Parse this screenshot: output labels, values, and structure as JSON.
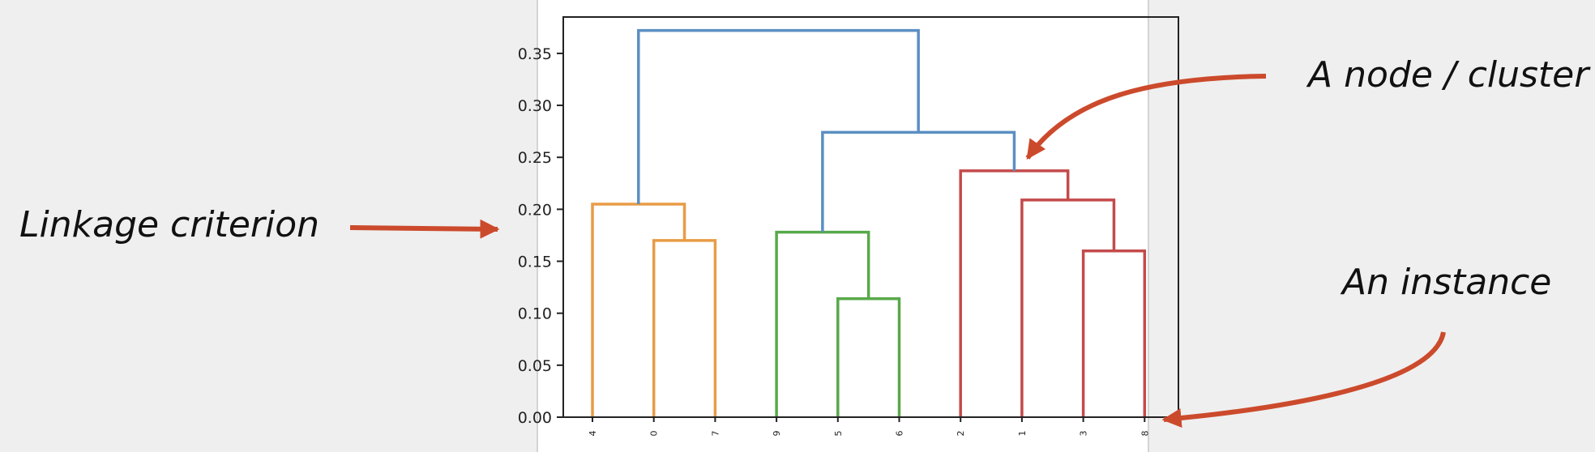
{
  "annotations": {
    "linkage": "Linkage criterion",
    "node": "A node / cluster",
    "instance": "An instance"
  },
  "colors": {
    "arrow": "#cc4a2c",
    "root": "#5b8fc2",
    "orange": "#e89c46",
    "green": "#58a94a",
    "red": "#c44a4a",
    "axis": "#222222"
  },
  "chart_data": {
    "type": "dendrogram",
    "title": "",
    "xlabel": "",
    "ylabel": "",
    "ylim": [
      0,
      0.385
    ],
    "yticks": [
      "0.00",
      "0.05",
      "0.10",
      "0.15",
      "0.20",
      "0.25",
      "0.30",
      "0.35"
    ],
    "leaves": [
      "4",
      "0",
      "7",
      "9",
      "5",
      "6",
      "2",
      "1",
      "3",
      "8"
    ],
    "links": [
      {
        "left": "leaf:1",
        "right": "leaf:2",
        "height": 0.17,
        "color": "orange"
      },
      {
        "left": "leaf:0",
        "right": "link:0",
        "height": 0.205,
        "color": "orange"
      },
      {
        "left": "leaf:4",
        "right": "leaf:5",
        "height": 0.114,
        "color": "green"
      },
      {
        "left": "leaf:3",
        "right": "link:2",
        "height": 0.178,
        "color": "green"
      },
      {
        "left": "leaf:8",
        "right": "leaf:9",
        "height": 0.16,
        "color": "red"
      },
      {
        "left": "leaf:7",
        "right": "link:4",
        "height": 0.209,
        "color": "red"
      },
      {
        "left": "leaf:6",
        "right": "link:5",
        "height": 0.237,
        "color": "red"
      },
      {
        "left": "link:3",
        "right": "link:6",
        "height": 0.274,
        "color": "root"
      },
      {
        "left": "link:1",
        "right": "link:7",
        "height": 0.372,
        "color": "root"
      }
    ]
  }
}
